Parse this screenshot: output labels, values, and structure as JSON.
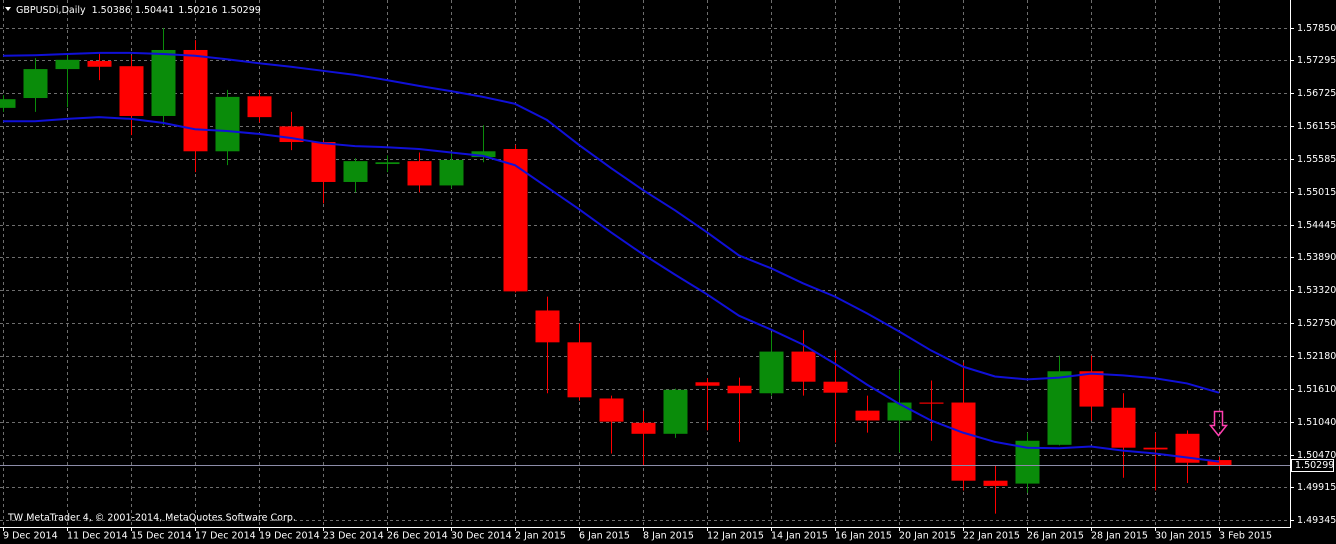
{
  "chart_data": {
    "type": "candlestick",
    "title": "GBPUSDi,Daily",
    "categories": [
      "9 Dec 2014",
      null,
      "11 Dec 2014",
      null,
      "15 Dec 2014",
      null,
      "17 Dec 2014",
      null,
      "19 Dec 2014",
      null,
      "23 Dec 2014",
      null,
      "26 Dec 2014",
      null,
      "30 Dec 2014",
      null,
      "2 Jan 2015",
      null,
      "6 Jan 2015",
      null,
      "8 Jan 2015",
      null,
      "12 Jan 2015",
      null,
      "14 Jan 2015",
      null,
      "16 Jan 2015",
      null,
      "20 Jan 2015",
      null,
      "22 Jan 2015",
      null,
      "26 Jan 2015",
      null,
      "28 Jan 2015",
      null,
      "30 Jan 2015",
      null,
      "3 Feb 2015"
    ],
    "candles": {
      "open": [
        1.5647,
        1.5664,
        1.5714,
        1.5728,
        1.5719,
        1.5633,
        1.5747,
        1.5572,
        1.5667,
        1.5615,
        1.5588,
        1.5519,
        1.555,
        1.5555,
        1.5513,
        1.5562,
        1.5576,
        1.5297,
        1.5242,
        1.5145,
        1.5103,
        1.5084,
        1.5173,
        1.5167,
        1.5154,
        1.5226,
        1.5174,
        1.5124,
        1.5107,
        1.5138,
        1.5138,
        1.5003,
        1.4998,
        1.5065,
        1.5192,
        1.5129,
        1.506,
        1.5084,
        1.50386
      ],
      "high": [
        1.5669,
        1.5733,
        1.5738,
        1.5743,
        1.5738,
        1.5785,
        1.5764,
        1.5678,
        1.5678,
        1.564,
        1.5591,
        1.556,
        1.5565,
        1.557,
        1.5572,
        1.5617,
        1.5583,
        1.5321,
        1.5275,
        1.515,
        1.5124,
        1.5162,
        1.518,
        1.5181,
        1.5259,
        1.5263,
        1.5228,
        1.515,
        1.5195,
        1.5176,
        1.5207,
        1.5029,
        1.5086,
        1.5219,
        1.5219,
        1.5154,
        1.5086,
        1.509,
        1.50441
      ],
      "low": [
        1.564,
        1.564,
        1.5648,
        1.5695,
        1.56,
        1.5617,
        1.5536,
        1.5548,
        1.5622,
        1.5574,
        1.5482,
        1.5501,
        1.5536,
        1.5501,
        1.5508,
        1.5553,
        1.5328,
        1.5154,
        1.5141,
        1.505,
        1.5029,
        1.5077,
        1.509,
        1.507,
        1.515,
        1.515,
        1.5069,
        1.5086,
        1.5052,
        1.5072,
        1.4986,
        1.4946,
        1.4982,
        1.5064,
        1.5107,
        1.5008,
        1.4986,
        1.4999,
        1.50216
      ],
      "close": [
        1.5662,
        1.5714,
        1.573,
        1.5718,
        1.5633,
        1.5747,
        1.5572,
        1.5666,
        1.5631,
        1.5588,
        1.5519,
        1.5555,
        1.5553,
        1.5513,
        1.5557,
        1.5572,
        1.533,
        1.5242,
        1.5147,
        1.5105,
        1.5084,
        1.516,
        1.5167,
        1.5154,
        1.5226,
        1.5174,
        1.5155,
        1.5107,
        1.5138,
        1.5136,
        1.5003,
        1.4994,
        1.5072,
        1.5192,
        1.5131,
        1.506,
        1.5057,
        1.5034,
        1.50299
      ],
      "up_color": "#0a8c0a",
      "down_color": "#ff0000"
    },
    "lines": [
      {
        "color": "#1010d8",
        "values": [
          1.5737,
          1.5738,
          1.574,
          1.5742,
          1.5742,
          1.574,
          1.5737,
          1.5731,
          1.5724,
          1.5718,
          1.5711,
          1.5704,
          1.5695,
          1.5685,
          1.5676,
          1.5666,
          1.5654,
          1.5626,
          1.5583,
          1.5543,
          1.5505,
          1.547,
          1.5432,
          1.5392,
          1.537,
          1.5344,
          1.5321,
          1.5292,
          1.5261,
          1.5228,
          1.52,
          1.5183,
          1.5178,
          1.5181,
          1.5188,
          1.5185,
          1.518,
          1.5171,
          1.5155
        ]
      },
      {
        "color": "#1010d8",
        "values": [
          1.5624,
          1.5624,
          1.5628,
          1.5631,
          1.5628,
          1.5621,
          1.561,
          1.5607,
          1.5602,
          1.5595,
          1.5586,
          1.5581,
          1.5579,
          1.5576,
          1.557,
          1.5564,
          1.5548,
          1.551,
          1.5472,
          1.5432,
          1.5394,
          1.5359,
          1.5325,
          1.5288,
          1.5264,
          1.5238,
          1.5205,
          1.5169,
          1.5136,
          1.5107,
          1.5086,
          1.507,
          1.506,
          1.5059,
          1.5062,
          1.5055,
          1.505,
          1.5043,
          1.5036
        ]
      }
    ],
    "ylim": [
      1.4923,
      1.58057
    ],
    "yticks": [
      {
        "value": 1.5785,
        "label": "1.57850"
      },
      1.57295,
      1.56725,
      1.56155,
      1.55585,
      1.55015,
      1.54445,
      {
        "value": 1.5389,
        "label": "1.53890"
      },
      {
        "value": 1.5332,
        "label": "1.53320"
      },
      {
        "value": 1.5275,
        "label": "1.52750"
      },
      {
        "value": 1.5218,
        "label": "1.52180"
      },
      {
        "value": 1.5161,
        "label": "1.51610"
      },
      {
        "value": 1.5104,
        "label": "1.51040"
      },
      {
        "value": 1.5047,
        "label": "1.50470"
      },
      1.49915,
      1.49345
    ],
    "grid": true
  },
  "credit": "TW MetaTrader 4, © 2001-2014, MetaQuotes Software Corp."
}
